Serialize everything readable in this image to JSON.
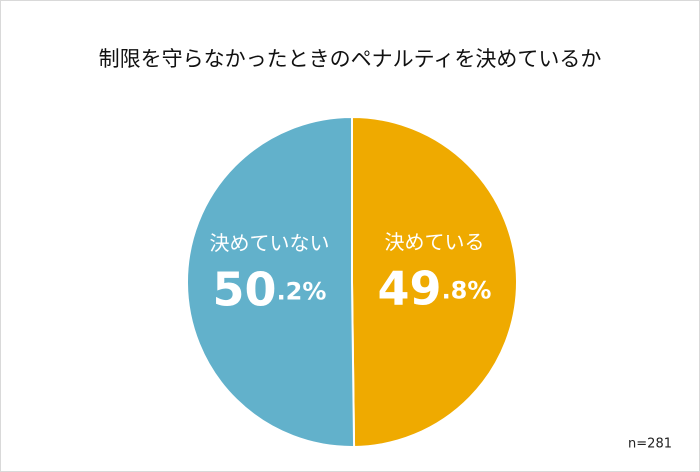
{
  "chart_data": {
    "type": "pie",
    "title": "制限を守らなかったときのペナルティを決めているか",
    "categories": [
      "決めている",
      "決めていない"
    ],
    "values": [
      49.8,
      50.2
    ],
    "value_labels": [
      "49.8%",
      "50.2%"
    ],
    "colors": [
      "#efaa00",
      "#62b1cb"
    ],
    "note": "n=281"
  }
}
